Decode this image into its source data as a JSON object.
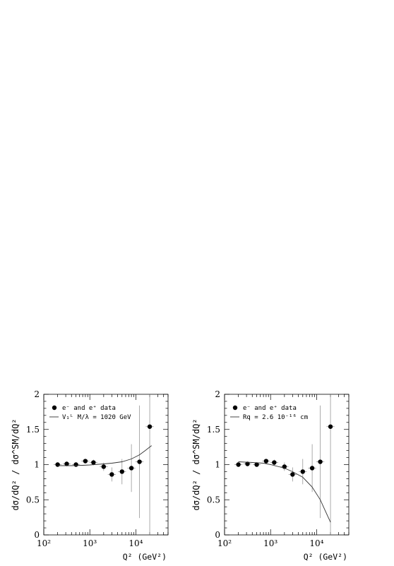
{
  "chart_data": [
    {
      "type": "scatter",
      "xscale": "log",
      "xlim": [
        100,
        50000
      ],
      "ylim": [
        0,
        2
      ],
      "xlabel": "Q² (GeV²)",
      "ylabel": "dσ/dQ² / dσ^SM/dQ²",
      "xticks": [
        "10²",
        "10³",
        "10⁴"
      ],
      "yticks": [
        "0",
        "0.5",
        "1",
        "1.5",
        "2"
      ],
      "legend": {
        "placement": "top-left",
        "entries": [
          "e⁻ and e⁺ data",
          "V₁ᴸ  M/λ = 1020 GeV"
        ]
      },
      "series": [
        {
          "name": "e⁻ and e⁺ data",
          "kind": "points",
          "points": [
            {
              "x": 200,
              "y": 1.0,
              "err": 0.02
            },
            {
              "x": 315,
              "y": 1.01,
              "err": 0.02
            },
            {
              "x": 500,
              "y": 1.0,
              "err": 0.02
            },
            {
              "x": 800,
              "y": 1.05,
              "err": 0.03
            },
            {
              "x": 1200,
              "y": 1.03,
              "err": 0.04
            },
            {
              "x": 2000,
              "y": 0.97,
              "err": 0.06
            },
            {
              "x": 3000,
              "y": 0.86,
              "err": 0.1
            },
            {
              "x": 5000,
              "y": 0.9,
              "err": 0.18
            },
            {
              "x": 8000,
              "y": 0.95,
              "err": 0.34
            },
            {
              "x": 12000,
              "y": 1.04,
              "err": 0.8
            },
            {
              "x": 20000,
              "y": 1.54,
              "err": 1.6
            }
          ]
        },
        {
          "name": "V₁ᴸ  M/λ = 1020 GeV",
          "kind": "line",
          "points": [
            {
              "x": 200,
              "y": 0.985
            },
            {
              "x": 400,
              "y": 0.985
            },
            {
              "x": 700,
              "y": 0.99
            },
            {
              "x": 1000,
              "y": 0.995
            },
            {
              "x": 2000,
              "y": 1.01
            },
            {
              "x": 3000,
              "y": 1.02
            },
            {
              "x": 5000,
              "y": 1.04
            },
            {
              "x": 8000,
              "y": 1.08
            },
            {
              "x": 12000,
              "y": 1.14
            },
            {
              "x": 16000,
              "y": 1.2
            },
            {
              "x": 20000,
              "y": 1.25
            },
            {
              "x": 22000,
              "y": 1.27
            }
          ]
        }
      ]
    },
    {
      "type": "scatter",
      "xscale": "log",
      "xlim": [
        100,
        50000
      ],
      "ylim": [
        0,
        2
      ],
      "xlabel": "Q² (GeV²)",
      "ylabel": "dσ/dQ² / dσ^SM/dQ²",
      "xticks": [
        "10²",
        "10³",
        "10⁴"
      ],
      "yticks": [
        "0",
        "0.5",
        "1",
        "1.5",
        "2"
      ],
      "legend": {
        "placement": "top-left",
        "entries": [
          "e⁻ and e⁺ data",
          "Rq = 2.6 10⁻¹⁶ cm"
        ]
      },
      "series": [
        {
          "name": "e⁻ and e⁺ data",
          "kind": "points",
          "points": [
            {
              "x": 200,
              "y": 1.0,
              "err": 0.02
            },
            {
              "x": 315,
              "y": 1.01,
              "err": 0.02
            },
            {
              "x": 500,
              "y": 1.0,
              "err": 0.02
            },
            {
              "x": 800,
              "y": 1.05,
              "err": 0.03
            },
            {
              "x": 1200,
              "y": 1.03,
              "err": 0.04
            },
            {
              "x": 2000,
              "y": 0.97,
              "err": 0.06
            },
            {
              "x": 3000,
              "y": 0.86,
              "err": 0.1
            },
            {
              "x": 5000,
              "y": 0.9,
              "err": 0.18
            },
            {
              "x": 8000,
              "y": 0.95,
              "err": 0.34
            },
            {
              "x": 12000,
              "y": 1.04,
              "err": 0.8
            },
            {
              "x": 20000,
              "y": 1.54,
              "err": 1.6
            }
          ]
        },
        {
          "name": "Rq = 2.6 10⁻¹⁶ cm",
          "kind": "line",
          "points": [
            {
              "x": 200,
              "y": 1.04
            },
            {
              "x": 400,
              "y": 1.03
            },
            {
              "x": 700,
              "y": 1.02
            },
            {
              "x": 1000,
              "y": 1.0
            },
            {
              "x": 2000,
              "y": 0.95
            },
            {
              "x": 3000,
              "y": 0.9
            },
            {
              "x": 5000,
              "y": 0.82
            },
            {
              "x": 8000,
              "y": 0.68
            },
            {
              "x": 12000,
              "y": 0.5
            },
            {
              "x": 16000,
              "y": 0.32
            },
            {
              "x": 20000,
              "y": 0.18
            }
          ]
        }
      ]
    }
  ]
}
